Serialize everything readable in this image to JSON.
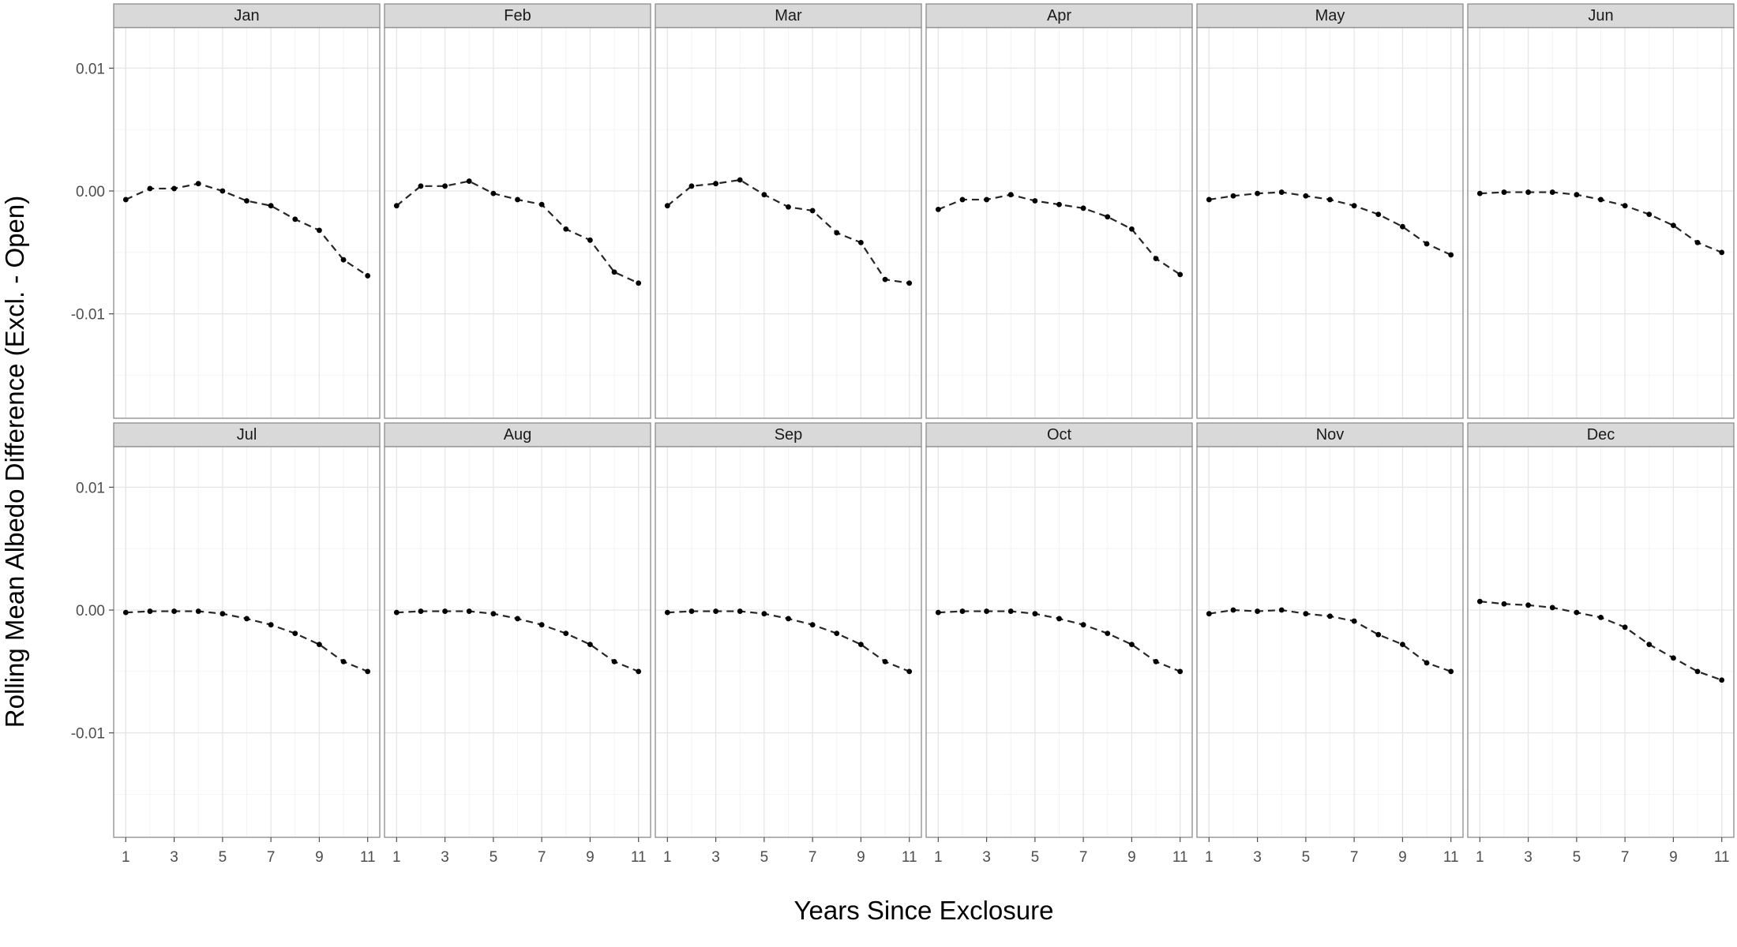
{
  "chart_data": {
    "type": "line",
    "layout": "facet-grid",
    "xlabel": "Years Since Exclosure",
    "ylabel": "Rolling Mean Albedo Difference (Excl. - Open)",
    "x": [
      1,
      2,
      3,
      4,
      5,
      6,
      7,
      8,
      9,
      10,
      11
    ],
    "xlim": [
      0.5,
      11.5
    ],
    "xticks": [
      1,
      3,
      5,
      7,
      9,
      11
    ],
    "ylim": [
      -0.0185,
      0.0133
    ],
    "yticks": [
      0.01,
      0.0,
      -0.01
    ],
    "ytick_labels": [
      "0.01",
      "0.00",
      "-0.01"
    ],
    "grid": true,
    "line_style": "dashed",
    "marker": "point",
    "series": [
      {
        "name": "Jan",
        "values": [
          -0.0007,
          0.0002,
          0.0002,
          0.0006,
          0.0,
          -0.0008,
          -0.0012,
          -0.0023,
          -0.0032,
          -0.0056,
          -0.0069
        ]
      },
      {
        "name": "Feb",
        "values": [
          -0.0012,
          0.0004,
          0.0004,
          0.0008,
          -0.0002,
          -0.0007,
          -0.0011,
          -0.0031,
          -0.004,
          -0.0066,
          -0.0075
        ]
      },
      {
        "name": "Mar",
        "values": [
          -0.0012,
          0.0004,
          0.0006,
          0.0009,
          -0.0003,
          -0.0013,
          -0.0016,
          -0.0034,
          -0.0042,
          -0.0072,
          -0.0075
        ]
      },
      {
        "name": "Apr",
        "values": [
          -0.0015,
          -0.0007,
          -0.0007,
          -0.0003,
          -0.0008,
          -0.0011,
          -0.0014,
          -0.0021,
          -0.0031,
          -0.0055,
          -0.0068
        ]
      },
      {
        "name": "May",
        "values": [
          -0.0007,
          -0.0004,
          -0.0002,
          -0.0001,
          -0.0004,
          -0.0007,
          -0.0012,
          -0.0019,
          -0.0029,
          -0.0043,
          -0.0052
        ]
      },
      {
        "name": "Jun",
        "values": [
          -0.0002,
          -0.0001,
          -0.0001,
          -0.0001,
          -0.0003,
          -0.0007,
          -0.0012,
          -0.0019,
          -0.0028,
          -0.0042,
          -0.005
        ]
      },
      {
        "name": "Jul",
        "values": [
          -0.0002,
          -0.0001,
          -0.0001,
          -0.0001,
          -0.0003,
          -0.0007,
          -0.0012,
          -0.0019,
          -0.0028,
          -0.0042,
          -0.005
        ]
      },
      {
        "name": "Aug",
        "values": [
          -0.0002,
          -0.0001,
          -0.0001,
          -0.0001,
          -0.0003,
          -0.0007,
          -0.0012,
          -0.0019,
          -0.0028,
          -0.0042,
          -0.005
        ]
      },
      {
        "name": "Sep",
        "values": [
          -0.0002,
          -0.0001,
          -0.0001,
          -0.0001,
          -0.0003,
          -0.0007,
          -0.0012,
          -0.0019,
          -0.0028,
          -0.0042,
          -0.005
        ]
      },
      {
        "name": "Oct",
        "values": [
          -0.0002,
          -0.0001,
          -0.0001,
          -0.0001,
          -0.0003,
          -0.0007,
          -0.0012,
          -0.0019,
          -0.0028,
          -0.0042,
          -0.005
        ]
      },
      {
        "name": "Nov",
        "values": [
          -0.0003,
          0.0,
          -0.0001,
          0.0,
          -0.0003,
          -0.0005,
          -0.0009,
          -0.002,
          -0.0028,
          -0.0043,
          -0.005
        ]
      },
      {
        "name": "Dec",
        "values": [
          0.0007,
          0.0005,
          0.0004,
          0.0002,
          -0.0002,
          -0.0006,
          -0.0014,
          -0.0028,
          -0.0039,
          -0.005,
          -0.0057
        ]
      }
    ]
  }
}
